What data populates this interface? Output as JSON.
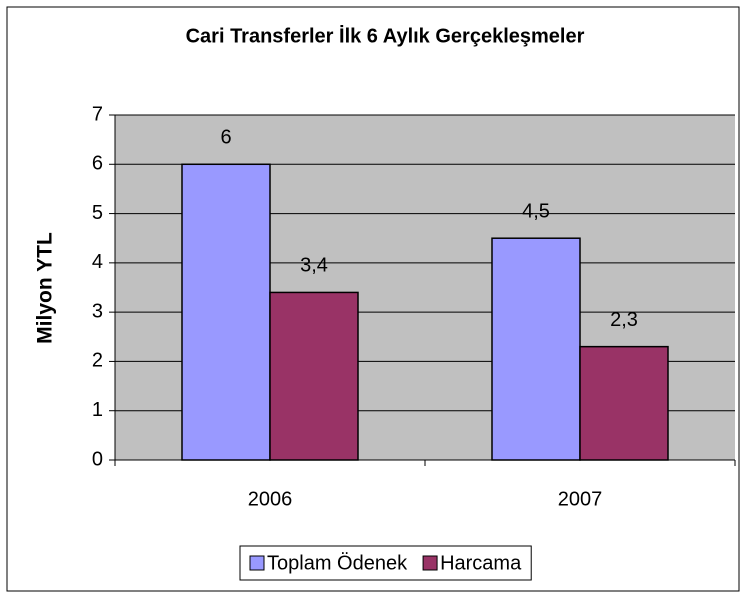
{
  "chart_data": {
    "type": "bar",
    "title": "Cari Transferler İlk 6 Aylık Gerçekleşmeler",
    "y_label": "Milyon YTL",
    "categories": [
      "2006",
      "2007"
    ],
    "series": [
      {
        "name": "Toplam Ödenek",
        "color": "#9999ff",
        "values": [
          6,
          4.5
        ],
        "value_labels": [
          "6",
          "4,5"
        ]
      },
      {
        "name": "Harcama",
        "color": "#993366",
        "values": [
          3.4,
          2.3
        ],
        "value_labels": [
          "3,4",
          "2,3"
        ]
      }
    ],
    "ylim": [
      0,
      7
    ],
    "yticks": [
      0,
      1,
      2,
      3,
      4,
      5,
      6,
      7
    ],
    "grid": true,
    "legend": "bottom"
  }
}
